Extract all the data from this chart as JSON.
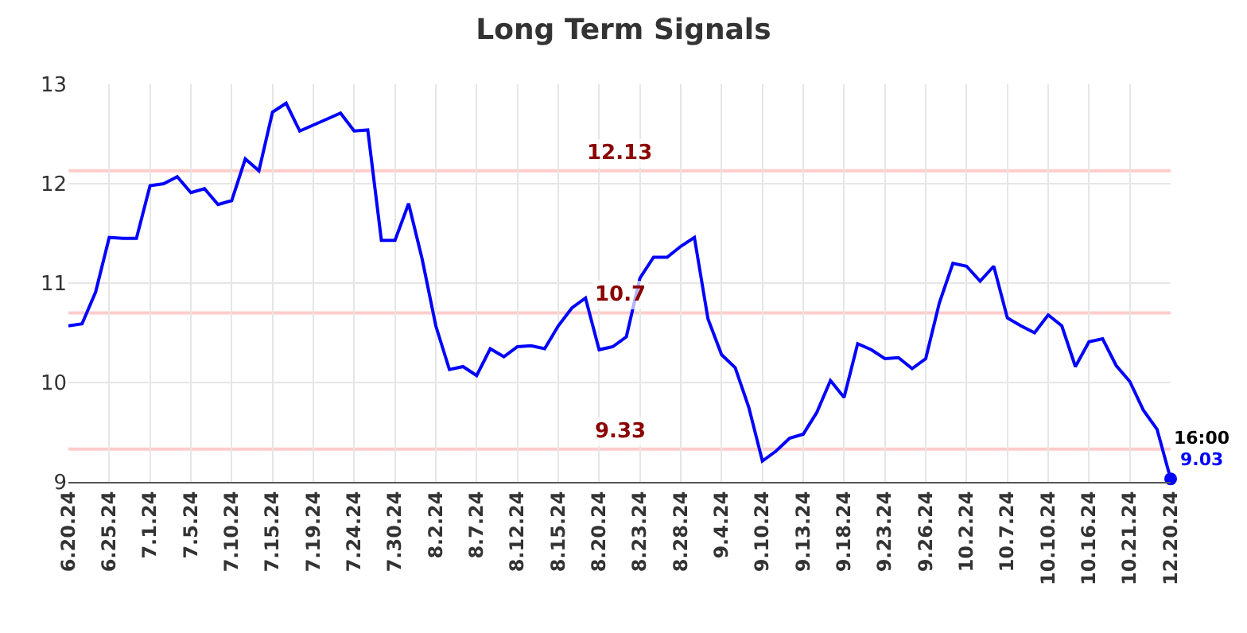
{
  "chart_data": {
    "type": "line",
    "title": "Long Term Signals",
    "categories": [
      "6.20.24",
      null,
      null,
      "6.25.24",
      null,
      null,
      "7.1.24",
      null,
      null,
      "7.5.24",
      null,
      null,
      "7.10.24",
      null,
      null,
      "7.15.24",
      null,
      null,
      "7.19.24",
      null,
      null,
      "7.24.24",
      null,
      null,
      "7.30.24",
      null,
      null,
      "8.2.24",
      null,
      null,
      "8.7.24",
      null,
      null,
      "8.12.24",
      null,
      null,
      "8.15.24",
      null,
      null,
      "8.20.24",
      null,
      null,
      "8.23.24",
      null,
      null,
      "8.28.24",
      null,
      null,
      "9.4.24",
      null,
      null,
      "9.10.24",
      null,
      null,
      "9.13.24",
      null,
      null,
      "9.18.24",
      null,
      null,
      "9.23.24",
      null,
      null,
      "9.26.24",
      null,
      null,
      "10.2.24",
      null,
      null,
      "10.7.24",
      null,
      null,
      "10.10.24",
      null,
      null,
      "10.16.24",
      null,
      null,
      "10.21.24",
      null,
      null,
      "12.20.24"
    ],
    "series": [
      {
        "color": "#0000ff",
        "values": [
          10.57,
          10.59,
          10.91,
          11.46,
          11.45,
          11.45,
          11.98,
          12.0,
          12.07,
          11.91,
          11.95,
          11.79,
          11.83,
          12.25,
          12.13,
          12.72,
          12.81,
          12.53,
          12.59,
          12.65,
          12.71,
          12.53,
          12.54,
          11.43,
          11.43,
          11.8,
          11.24,
          10.57,
          10.13,
          10.16,
          10.07,
          10.34,
          10.26,
          10.36,
          10.37,
          10.34,
          10.57,
          10.75,
          10.85,
          10.33,
          10.36,
          10.46,
          11.05,
          11.26,
          11.26,
          11.37,
          11.46,
          10.64,
          10.28,
          10.15,
          9.75,
          9.21,
          9.31,
          9.44,
          9.48,
          9.7,
          10.02,
          9.85,
          10.39,
          10.33,
          10.24,
          10.25,
          10.14,
          10.24,
          10.8,
          11.2,
          11.17,
          11.02,
          11.17,
          10.65,
          10.57,
          10.5,
          10.68,
          10.57,
          10.16,
          10.41,
          10.44,
          10.17,
          10.01,
          9.72,
          9.53,
          9.03
        ],
        "value_labels": [
          null,
          null,
          null,
          null,
          null,
          null,
          null,
          null,
          null,
          null,
          null,
          null,
          null,
          null,
          null,
          null,
          null,
          null,
          null,
          null,
          null,
          null,
          null,
          null,
          null,
          null,
          null,
          null,
          null,
          null,
          null,
          null,
          null,
          null,
          null,
          null,
          null,
          null,
          null,
          null,
          null,
          null,
          null,
          null,
          null,
          null,
          null,
          null,
          null,
          null,
          null,
          null,
          null,
          null,
          null,
          null,
          null,
          null,
          null,
          null,
          null,
          null,
          null,
          null,
          null,
          null,
          null,
          null,
          null,
          null,
          null,
          null,
          null,
          null,
          null,
          null,
          null,
          null,
          null,
          null,
          null,
          "9.03"
        ]
      }
    ],
    "ylim": [
      9,
      13
    ],
    "yticks": [
      9,
      10,
      11,
      12,
      13
    ],
    "grid": true,
    "line_style": "solid",
    "marker": "none",
    "ref_lines": [
      {
        "axis": "y",
        "value": 12.13,
        "label": "12.13",
        "color": "#ffcccc"
      },
      {
        "axis": "y",
        "value": 10.7,
        "label": "10.7",
        "color": "#ffcccc"
      },
      {
        "axis": "y",
        "value": 9.33,
        "label": "9.33",
        "color": "#ffcccc"
      }
    ],
    "annotations": [
      {
        "text": "16:00",
        "x": "12.20.24",
        "y": 9.03
      }
    ]
  }
}
